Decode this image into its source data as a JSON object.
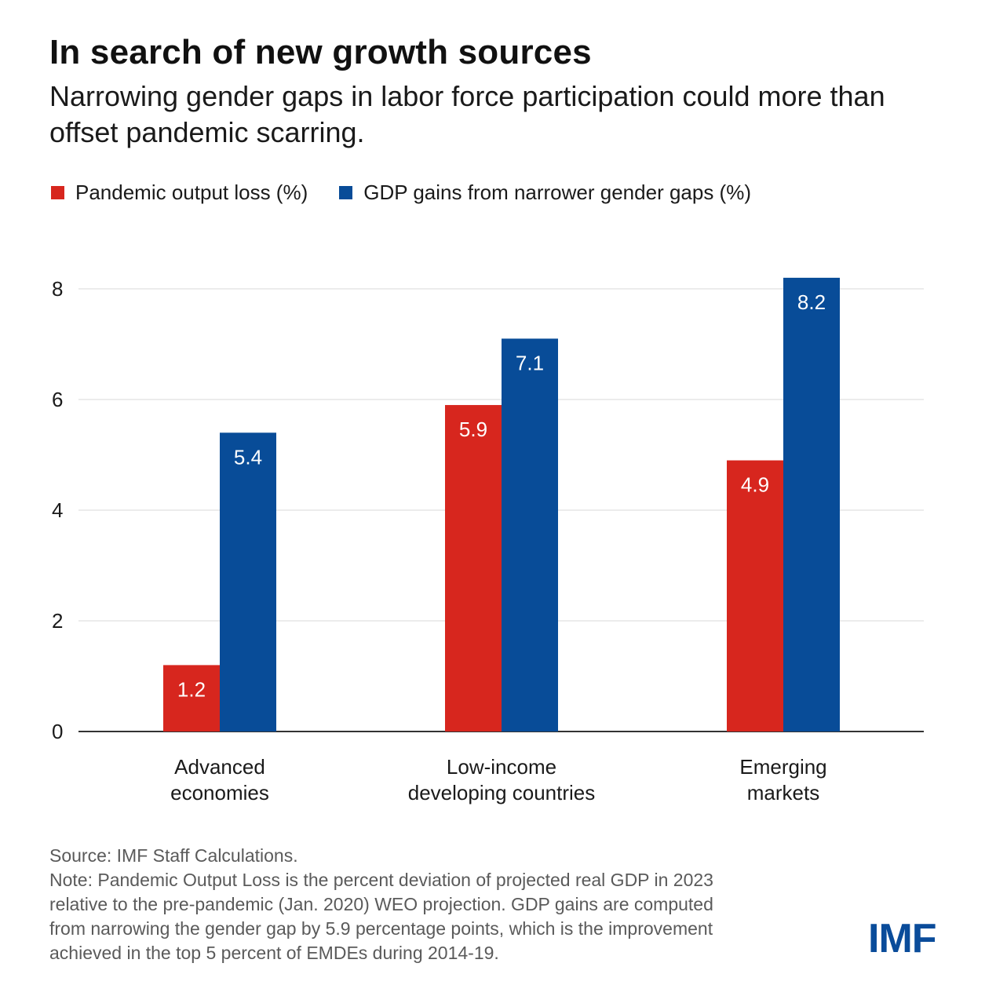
{
  "header": {
    "title": "In search of new growth sources",
    "subtitle": "Narrowing gender gaps in labor force participation could more than offset pandemic scarring."
  },
  "legend": {
    "items": [
      {
        "label": "Pandemic output loss (%)",
        "color": "#d7261e"
      },
      {
        "label": "GDP gains from narrower gender gaps (%)",
        "color": "#084c98"
      }
    ]
  },
  "chart_data": {
    "type": "bar",
    "categories": [
      [
        "Advanced",
        "economies"
      ],
      [
        "Low-income",
        "developing countries"
      ],
      [
        "Emerging",
        "markets"
      ]
    ],
    "series": [
      {
        "name": "Pandemic output loss (%)",
        "color": "#d7261e",
        "values": [
          1.2,
          5.9,
          4.9
        ]
      },
      {
        "name": "GDP gains from narrower gender gaps (%)",
        "color": "#084c98",
        "values": [
          5.4,
          7.1,
          8.2
        ]
      }
    ],
    "yticks": [
      0,
      2,
      4,
      6,
      8
    ],
    "ylim": [
      0,
      8.4
    ],
    "grid": true,
    "legend_position": "top-left"
  },
  "footer": {
    "source": "Source: IMF Staff Calculations.",
    "note_lines": [
      "Note: Pandemic Output Loss is the percent deviation of projected real GDP in 2023",
      "relative to the pre-pandemic (Jan. 2020) WEO projection. GDP gains are computed",
      "from narrowing the gender gap by 5.9 percentage points, which is the improvement",
      "achieved in the top 5 percent of EMDEs during 2014-19."
    ]
  },
  "logo": {
    "text": "IMF"
  }
}
